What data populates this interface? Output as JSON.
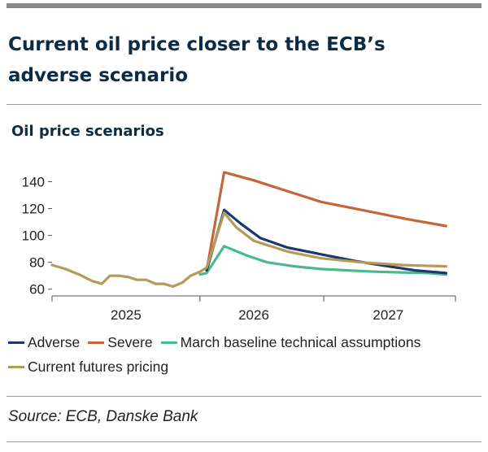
{
  "headline": "Current oil price closer to the ECB’s adverse scenario",
  "source": "Source: ECB, Danske Bank",
  "colors": {
    "adverse": "#1b3a6b",
    "severe": "#c4653a",
    "baseline": "#4aba8e",
    "futures": "#b59a5a",
    "axis": "#555555",
    "title": "#0b2b46"
  },
  "chart_data": {
    "type": "line",
    "title": "Oil price scenarios",
    "xlabel": "",
    "ylabel": "",
    "ylim": [
      55,
      153
    ],
    "xlim": [
      0,
      30
    ],
    "yticks": [
      60,
      80,
      100,
      120,
      140
    ],
    "x_year_labels": [
      {
        "label": "2025",
        "x": 5.5
      },
      {
        "label": "2026",
        "x": 15
      },
      {
        "label": "2027",
        "x": 25
      }
    ],
    "x_boundaries": [
      0,
      11,
      20.2,
      30
    ],
    "legend_position": "bottom",
    "series": [
      {
        "name": "Severe",
        "color_key": "severe",
        "x": [
          11.5,
          12.8,
          15,
          17.5,
          20,
          23,
          26.5,
          29.3
        ],
        "values": [
          74,
          147,
          141,
          133,
          125,
          119,
          112,
          107
        ]
      },
      {
        "name": "March baseline technical assumptions",
        "color_key": "baseline",
        "x": [
          11,
          11.5,
          12.8,
          14.5,
          16,
          18,
          20,
          22,
          24,
          26,
          28,
          29.3
        ],
        "values": [
          71,
          72,
          92,
          85,
          80,
          77,
          75,
          74,
          73,
          72.5,
          72,
          71
        ]
      },
      {
        "name": "Adverse",
        "color_key": "adverse",
        "x": [
          11.5,
          12.8,
          14,
          15.5,
          17.5,
          20,
          22.5,
          25,
          27,
          29.3
        ],
        "values": [
          74,
          119,
          109,
          98,
          91,
          86,
          81,
          77,
          74,
          72
        ]
      },
      {
        "name": "Current futures pricing",
        "color_key": "futures",
        "x": [
          0,
          1,
          2,
          3,
          3.7,
          4.3,
          5,
          5.7,
          6.3,
          7,
          7.7,
          8.3,
          9,
          9.7,
          10.3,
          11,
          11.5,
          12.2,
          12.8,
          13.7,
          15,
          17.5,
          20,
          23,
          26,
          29.3
        ],
        "values": [
          78,
          75,
          71,
          66,
          64,
          70,
          70,
          69,
          67,
          67,
          64,
          64,
          62,
          65,
          70,
          73,
          76,
          98,
          117,
          106,
          96,
          88,
          83,
          80,
          78,
          77
        ]
      }
    ]
  },
  "legend": {
    "items": [
      {
        "label": "Adverse",
        "color_key": "adverse"
      },
      {
        "label": "Severe",
        "color_key": "severe"
      },
      {
        "label": "March baseline technical assumptions",
        "color_key": "baseline"
      },
      {
        "label": "Current futures pricing",
        "color_key": "futures"
      }
    ]
  }
}
